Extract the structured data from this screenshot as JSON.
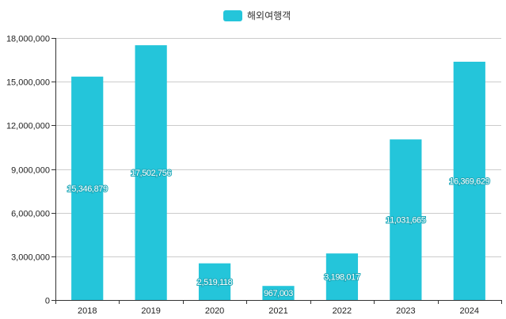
{
  "chart_data": {
    "type": "bar",
    "categories": [
      "2018",
      "2019",
      "2020",
      "2021",
      "2022",
      "2023",
      "2024"
    ],
    "series": [
      {
        "name": "해외여행객",
        "values": [
          15346879,
          17502756,
          2519118,
          967003,
          3198017,
          11031665,
          16369629
        ],
        "labels": [
          "15,346,879",
          "17,502,756",
          "2,519,118",
          "967,003",
          "3,198,017",
          "11,031,665",
          "16,369,629"
        ],
        "color": "#24c5da"
      }
    ],
    "ylim": [
      0,
      18000000
    ],
    "yticks": [
      0,
      3000000,
      6000000,
      9000000,
      12000000,
      15000000,
      18000000
    ],
    "ytick_labels": [
      "0",
      "3,000,000",
      "6,000,000",
      "9,000,000",
      "12,000,000",
      "15,000,000",
      "18,000,000"
    ],
    "grid": true,
    "legend_position": "top-center",
    "title": "",
    "xlabel": "",
    "ylabel": ""
  }
}
